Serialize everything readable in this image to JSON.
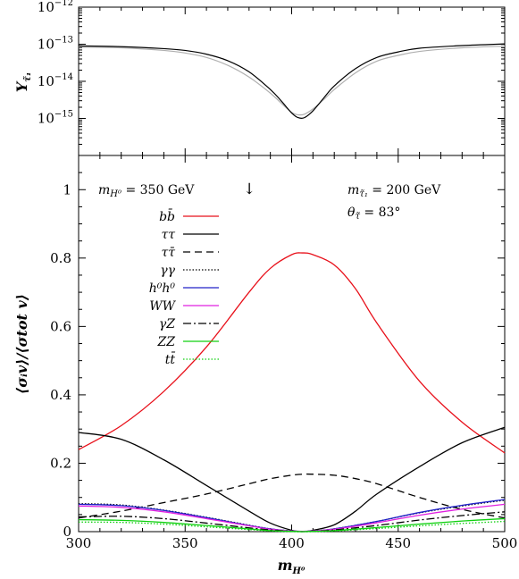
{
  "chart_data": [
    {
      "panel": "top",
      "type": "line",
      "yscale": "log",
      "ylabel": "Y",
      "ylabel_sub": "τ̃₁",
      "xlim": [
        300,
        500
      ],
      "ylim": [
        1e-16,
        1e-12
      ],
      "ytick_values": [
        1e-15,
        1e-14,
        1e-13,
        1e-12
      ],
      "ytick_base": "10",
      "ytick_exponents": [
        "−15",
        "−14",
        "−13",
        "−12"
      ],
      "series": [
        {
          "color": "#000000",
          "x": [
            300,
            320,
            340,
            350,
            360,
            370,
            380,
            390,
            395,
            400,
            403,
            406,
            410,
            415,
            420,
            430,
            440,
            450,
            460,
            480,
            500
          ],
          "y": [
            9e-14,
            8.6e-14,
            7.6e-14,
            6.8e-14,
            5.4e-14,
            3.6e-14,
            1.8e-14,
            6e-15,
            3e-15,
            1.4e-15,
            1.05e-15,
            1.05e-15,
            1.6e-15,
            3.5e-15,
            7.5e-15,
            2.2e-14,
            4.4e-14,
            6.2e-14,
            7.8e-14,
            9.2e-14,
            1.02e-13
          ]
        },
        {
          "color": "#b0b0b0",
          "x": [
            300,
            320,
            340,
            350,
            360,
            370,
            380,
            390,
            395,
            400,
            403,
            406,
            410,
            415,
            420,
            430,
            440,
            450,
            460,
            480,
            500
          ],
          "y": [
            8.4e-14,
            8e-14,
            6.8e-14,
            5.8e-14,
            4.4e-14,
            2.7e-14,
            1.3e-14,
            4.8e-15,
            2.6e-15,
            1.45e-15,
            1.25e-15,
            1.3e-15,
            1.8e-15,
            3.2e-15,
            6e-15,
            1.7e-14,
            3.5e-14,
            5e-14,
            6.4e-14,
            8e-14,
            8.9e-14
          ]
        }
      ]
    },
    {
      "panel": "bottom",
      "type": "line",
      "xlabel": "m",
      "xlabel_sub": "H⁰",
      "ylabel": "⟨σᵢv⟩/⟨σtot v⟩",
      "xlim": [
        300,
        500
      ],
      "ylim": [
        0,
        1.1
      ],
      "xticks": [
        300,
        350,
        400,
        450,
        500
      ],
      "yticks": [
        0,
        0.2,
        0.4,
        0.6,
        0.8,
        1
      ],
      "ytick_labels": [
        "0",
        "0.2",
        "0.4",
        "0.6",
        "0.8",
        "1"
      ],
      "series": [
        {
          "name": "bb̄",
          "color": "#e8101a",
          "dash": "solid",
          "x": [
            300,
            320,
            340,
            360,
            380,
            390,
            400,
            405,
            410,
            420,
            430,
            440,
            460,
            480,
            500
          ],
          "y": [
            0.24,
            0.31,
            0.41,
            0.54,
            0.7,
            0.77,
            0.81,
            0.815,
            0.81,
            0.78,
            0.71,
            0.61,
            0.44,
            0.32,
            0.23
          ]
        },
        {
          "name": "ττ",
          "color": "#000000",
          "dash": "solid",
          "x": [
            300,
            320,
            340,
            360,
            380,
            390,
            400,
            405,
            410,
            420,
            430,
            440,
            460,
            480,
            500
          ],
          "y": [
            0.29,
            0.27,
            0.21,
            0.135,
            0.06,
            0.025,
            0.004,
            0.0,
            0.004,
            0.02,
            0.06,
            0.11,
            0.19,
            0.26,
            0.305
          ]
        },
        {
          "name": "ττ̄",
          "color": "#000000",
          "dash": "8,5",
          "x": [
            300,
            320,
            340,
            360,
            380,
            390,
            400,
            405,
            410,
            420,
            430,
            440,
            460,
            480,
            500
          ],
          "y": [
            0.04,
            0.06,
            0.085,
            0.11,
            0.14,
            0.155,
            0.165,
            0.168,
            0.168,
            0.165,
            0.155,
            0.14,
            0.1,
            0.065,
            0.04
          ]
        },
        {
          "name": "γγ",
          "color": "#000000",
          "dash": "1.5,2",
          "x": [
            300,
            320,
            340,
            360,
            380,
            390,
            400,
            405,
            410,
            420,
            440,
            460,
            480,
            500
          ],
          "y": [
            0.082,
            0.078,
            0.063,
            0.042,
            0.019,
            0.008,
            0.002,
            0.001,
            0.002,
            0.008,
            0.03,
            0.055,
            0.075,
            0.092
          ]
        },
        {
          "name": "h⁰h⁰",
          "color": "#2020c8",
          "dash": "solid",
          "x": [
            300,
            320,
            340,
            360,
            380,
            390,
            400,
            405,
            410,
            420,
            440,
            460,
            480,
            500
          ],
          "y": [
            0.08,
            0.076,
            0.062,
            0.041,
            0.018,
            0.008,
            0.002,
            0.001,
            0.002,
            0.008,
            0.03,
            0.056,
            0.077,
            0.094
          ]
        },
        {
          "name": "WW",
          "color": "#e020e0",
          "dash": "solid",
          "x": [
            300,
            320,
            340,
            360,
            380,
            390,
            400,
            405,
            410,
            420,
            440,
            460,
            480,
            500
          ],
          "y": [
            0.075,
            0.071,
            0.058,
            0.038,
            0.017,
            0.007,
            0.002,
            0.001,
            0.002,
            0.007,
            0.026,
            0.048,
            0.066,
            0.08
          ]
        },
        {
          "name": "γZ",
          "color": "#000000",
          "dash": "9,3,2,3",
          "x": [
            300,
            320,
            340,
            360,
            380,
            390,
            400,
            405,
            410,
            420,
            440,
            460,
            480,
            500
          ],
          "y": [
            0.043,
            0.045,
            0.038,
            0.025,
            0.011,
            0.005,
            0.001,
            0.0,
            0.001,
            0.005,
            0.018,
            0.034,
            0.047,
            0.058
          ]
        },
        {
          "name": "ZZ",
          "color": "#10d010",
          "dash": "solid",
          "x": [
            300,
            320,
            340,
            360,
            380,
            390,
            400,
            405,
            410,
            420,
            440,
            460,
            480,
            500
          ],
          "y": [
            0.035,
            0.033,
            0.027,
            0.018,
            0.008,
            0.003,
            0.001,
            0.0,
            0.001,
            0.003,
            0.012,
            0.022,
            0.031,
            0.038
          ]
        },
        {
          "name": "tt̄",
          "color": "#10d010",
          "dash": "1.5,2",
          "x": [
            300,
            320,
            340,
            360,
            380,
            390,
            400,
            405,
            410,
            420,
            440,
            460,
            480,
            500
          ],
          "y": [
            0.028,
            0.027,
            0.022,
            0.014,
            0.006,
            0.002,
            0.0,
            0.0,
            0.0,
            0.002,
            0.009,
            0.017,
            0.024,
            0.03
          ]
        }
      ],
      "annotations": {
        "mass_label": "m",
        "mass_sub": "H⁰",
        "mass_value": " = 350 GeV",
        "arrow": "↓",
        "stau_mass_label": "m",
        "stau_mass_sub": "τ̃₁",
        "stau_mass_value": " = 200 GeV",
        "theta_label": "θ",
        "theta_sub": "τ̃",
        "theta_value": " = 83°"
      }
    }
  ]
}
